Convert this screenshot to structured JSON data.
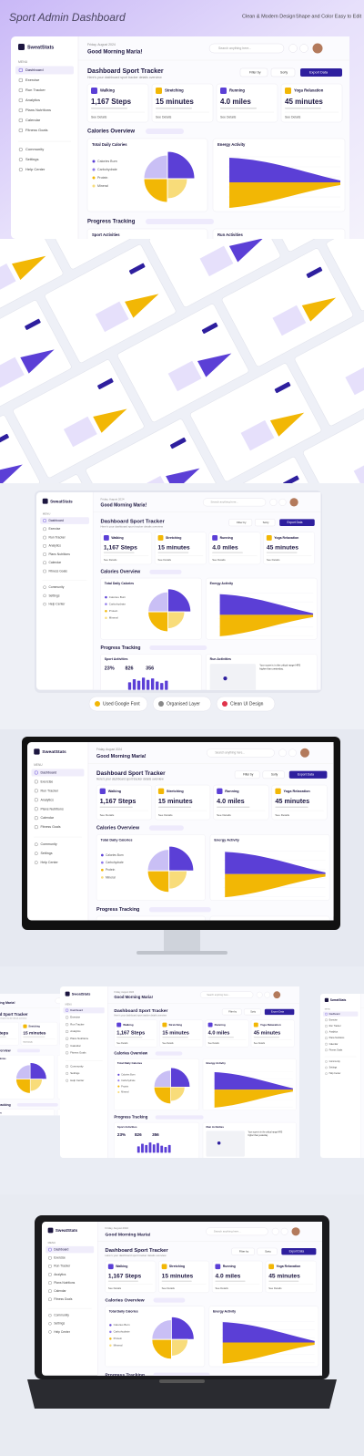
{
  "header": {
    "title": "Sport Admin Dashboard",
    "feature_1": "Clean & Modern Design",
    "feature_2": "Shape and Color Easy to Edit"
  },
  "dashboard": {
    "brand": "SweatStats",
    "menu_label": "MENU",
    "nav": [
      "Dashboard",
      "Exercise",
      "Run Tracker",
      "Analytics",
      "Plans Nutritions",
      "Calendar",
      "Fitness Goals"
    ],
    "nav_secondary": [
      "Community",
      "Settings",
      "Help Center"
    ],
    "date": "Friday, August 2024",
    "greeting": "Good Morning Maria!",
    "search_placeholder": "Search anything here...",
    "title": "Dashboard Sport Tracker",
    "subtitle": "Here's your dashboard sport tracker details overview",
    "filter": "Filter by",
    "sort": "Sorty",
    "export": "Export Data",
    "cards": [
      {
        "label": "Walking",
        "value": "1,167 Steps",
        "color": "#5b3fd6"
      },
      {
        "label": "Stretching",
        "value": "15 minutes",
        "color": "#f2b705"
      },
      {
        "label": "Running",
        "value": "4.0 miles",
        "color": "#5b3fd6"
      },
      {
        "label": "Yoga Relaxation",
        "value": "45 minutes",
        "color": "#f2b705"
      }
    ],
    "card_link": "See Details",
    "calories_title": "Calories Overview",
    "calories_panel": "Total Daily Calories",
    "calories_legend": [
      "Calories Burn",
      "Carbohydrate",
      "Protein",
      "Mineral"
    ],
    "energy_title": "Energy Activity",
    "progress_title": "Progress Tracking",
    "sport_title": "Sport Activities",
    "run_title": "Run Activities",
    "sport_stats": [
      "23%",
      "826",
      "356"
    ],
    "run_note": [
      "Your score is in the critical range HRS",
      "higher than yesterday."
    ]
  },
  "badges": [
    "Used Google Font",
    "Organised Layer",
    "Clean UI Design"
  ]
}
